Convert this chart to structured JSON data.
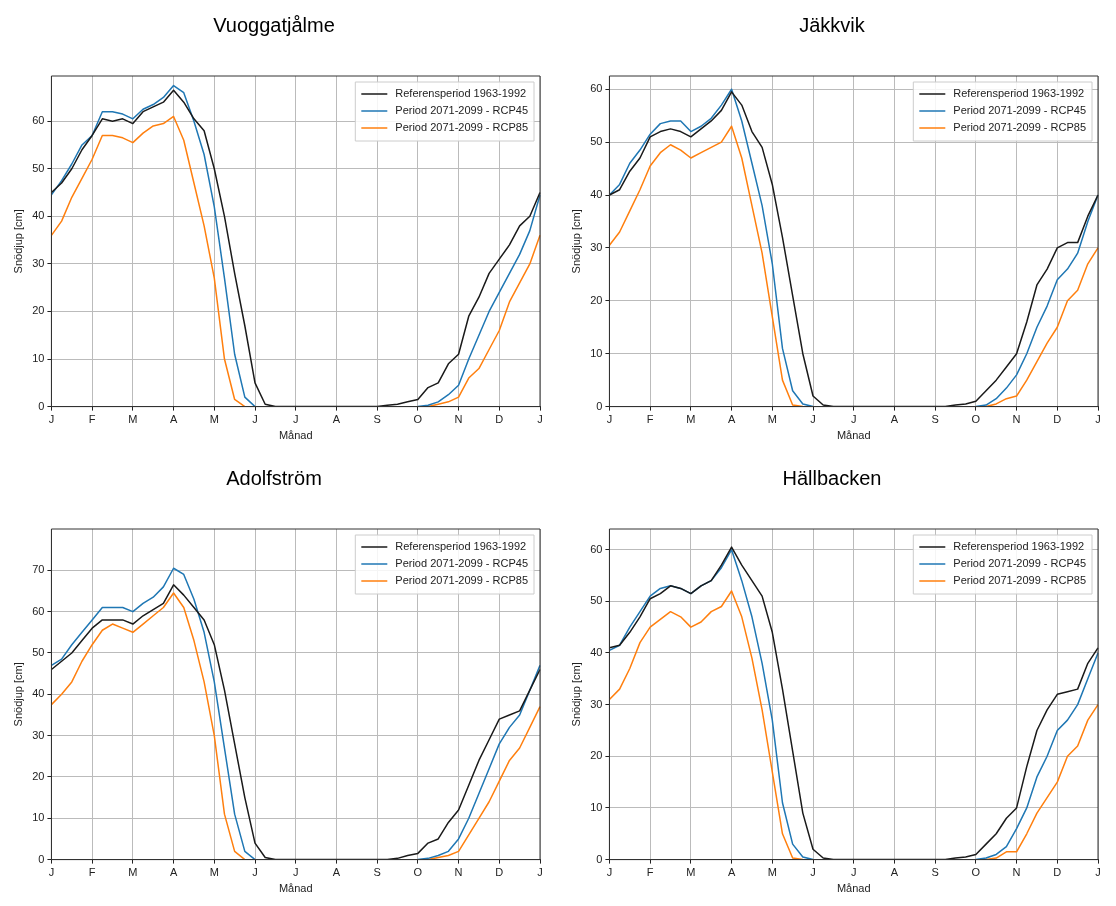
{
  "chart_data": [
    {
      "type": "line",
      "title": "Vuoggatjålme",
      "xlabel": "Månad",
      "ylabel": "Snödjup [cm]",
      "ylim": [
        0,
        69.5
      ],
      "yticks": [
        0,
        10,
        20,
        30,
        40,
        50,
        60
      ],
      "grid": true,
      "legend": "top right",
      "categories": [
        "J",
        null,
        null,
        null,
        "F",
        null,
        null,
        null,
        "M",
        null,
        null,
        null,
        "A",
        null,
        null,
        null,
        "M",
        null,
        null,
        null,
        "J",
        null,
        null,
        null,
        "J",
        null,
        null,
        null,
        "A",
        null,
        null,
        null,
        "S",
        null,
        null,
        null,
        "O",
        null,
        null,
        null,
        "N",
        null,
        null,
        null,
        "D",
        null,
        null,
        null,
        "J"
      ],
      "series": [
        {
          "name": "Referensperiod 1963-1992",
          "color": "#1a1a1a",
          "values": [
            45,
            47,
            50,
            54,
            57,
            60.5,
            60,
            60.5,
            59.5,
            62,
            63,
            64,
            66.5,
            64,
            60.5,
            58,
            50,
            40,
            28,
            17,
            5,
            0.5,
            0,
            0,
            0,
            0,
            0,
            0,
            0,
            0,
            0,
            0,
            0,
            0.3,
            0.5,
            1,
            1.5,
            4,
            5,
            9,
            11,
            19,
            23,
            28,
            31,
            34,
            38,
            40,
            45
          ]
        },
        {
          "name": "Period 2071-2099 - RCP45",
          "color": "#1f77b4",
          "values": [
            44.5,
            47.5,
            51,
            55,
            57,
            62,
            62,
            61.5,
            60.5,
            62.5,
            63.5,
            65,
            67.5,
            66,
            60,
            53,
            42,
            27,
            11,
            2,
            0,
            null,
            null,
            null,
            null,
            null,
            null,
            null,
            null,
            null,
            null,
            null,
            null,
            null,
            null,
            null,
            0,
            0.3,
            1,
            2.5,
            4.5,
            10,
            15,
            20,
            24,
            28,
            32,
            37,
            44.5
          ]
        },
        {
          "name": "Period 2071-2099 - RCP85",
          "color": "#ff7f0e",
          "values": [
            36,
            39,
            44,
            48,
            52,
            57,
            57,
            56.5,
            55.5,
            57.5,
            59,
            59.5,
            61,
            56,
            47,
            38,
            27,
            10,
            1.5,
            0,
            null,
            null,
            null,
            null,
            null,
            null,
            null,
            null,
            null,
            null,
            null,
            null,
            null,
            null,
            null,
            null,
            null,
            0,
            0.5,
            1,
            2,
            6,
            8,
            12,
            16,
            22,
            26,
            30,
            36
          ]
        }
      ]
    },
    {
      "type": "line",
      "title": "Jäkkvik",
      "xlabel": "Månad",
      "ylabel": "Snödjup [cm]",
      "ylim": [
        0,
        62.5
      ],
      "yticks": [
        0,
        10,
        20,
        30,
        40,
        50,
        60
      ],
      "grid": true,
      "legend": "top right",
      "categories": [
        "J",
        null,
        null,
        null,
        "F",
        null,
        null,
        null,
        "M",
        null,
        null,
        null,
        "A",
        null,
        null,
        null,
        "M",
        null,
        null,
        null,
        "J",
        null,
        null,
        null,
        "J",
        null,
        null,
        null,
        "A",
        null,
        null,
        null,
        "S",
        null,
        null,
        null,
        "O",
        null,
        null,
        null,
        "N",
        null,
        null,
        null,
        "D",
        null,
        null,
        null,
        "J"
      ],
      "series": [
        {
          "name": "Referensperiod 1963-1992",
          "color": "#1a1a1a",
          "values": [
            40,
            41,
            44.5,
            47,
            51,
            52,
            52.5,
            52,
            51,
            52.5,
            54,
            56,
            59.5,
            57,
            52,
            49,
            42,
            32,
            21,
            10,
            2,
            0.3,
            0,
            0,
            0,
            0,
            0,
            0,
            0,
            0,
            0,
            0,
            0,
            0,
            0.3,
            0.5,
            1,
            3,
            5,
            7.5,
            10,
            16,
            23,
            26,
            30,
            31,
            31,
            36,
            40
          ]
        },
        {
          "name": "Period 2071-2099 - RCP45",
          "color": "#1f77b4",
          "values": [
            40,
            42,
            46,
            48.5,
            51.5,
            53.5,
            54,
            54,
            52,
            53,
            54.5,
            57,
            60,
            54,
            46,
            38,
            27,
            11,
            3,
            0.5,
            0,
            null,
            null,
            null,
            null,
            null,
            null,
            null,
            null,
            null,
            null,
            null,
            null,
            null,
            null,
            null,
            0,
            0.3,
            1.5,
            3.5,
            6,
            10,
            15,
            19,
            24,
            26,
            29,
            35,
            40
          ]
        },
        {
          "name": "Period 2071-2099 - RCP85",
          "color": "#ff7f0e",
          "values": [
            30.5,
            33,
            37,
            41,
            45.5,
            48,
            49.5,
            48.5,
            47,
            48,
            49,
            50,
            53,
            47,
            38,
            29,
            17,
            5,
            0.3,
            0,
            null,
            null,
            null,
            null,
            null,
            null,
            null,
            null,
            null,
            null,
            null,
            null,
            null,
            null,
            null,
            null,
            null,
            0,
            0.5,
            1.5,
            2,
            5,
            8.5,
            12,
            15,
            20,
            22,
            27,
            30
          ]
        }
      ]
    },
    {
      "type": "line",
      "title": "Adolfström",
      "xlabel": "Månad",
      "ylabel": "Snödjup [cm]",
      "ylim": [
        0,
        80
      ],
      "yticks": [
        0,
        10,
        20,
        30,
        40,
        50,
        60,
        70
      ],
      "grid": true,
      "legend": "top right",
      "categories": [
        "J",
        null,
        null,
        null,
        "F",
        null,
        null,
        null,
        "M",
        null,
        null,
        null,
        "A",
        null,
        null,
        null,
        "M",
        null,
        null,
        null,
        "J",
        null,
        null,
        null,
        "J",
        null,
        null,
        null,
        "A",
        null,
        null,
        null,
        "S",
        null,
        null,
        null,
        "O",
        null,
        null,
        null,
        "N",
        null,
        null,
        null,
        "D",
        null,
        null,
        null,
        "J"
      ],
      "series": [
        {
          "name": "Referensperiod 1963-1992",
          "color": "#1a1a1a",
          "values": [
            46,
            48,
            50,
            53,
            56,
            58,
            58,
            58,
            57,
            59,
            60.5,
            62,
            66.5,
            64,
            61,
            58,
            52,
            41,
            28,
            15,
            4,
            0.5,
            0,
            0,
            0,
            0,
            0,
            0,
            0,
            0,
            0,
            0,
            0,
            0,
            0.3,
            1,
            1.5,
            4,
            5,
            9,
            12,
            18,
            24,
            29,
            34,
            35,
            36,
            41,
            46
          ]
        },
        {
          "name": "Period 2071-2099 - RCP45",
          "color": "#1f77b4",
          "values": [
            47,
            48.5,
            52,
            55,
            58,
            61,
            61,
            61,
            60,
            62,
            63.5,
            66,
            70.5,
            69,
            63,
            55,
            43,
            27,
            11,
            2,
            0,
            null,
            null,
            null,
            null,
            null,
            null,
            null,
            null,
            null,
            null,
            null,
            null,
            null,
            null,
            null,
            0,
            0.3,
            1,
            2,
            5,
            10,
            16,
            22,
            28,
            32,
            35,
            41,
            47
          ]
        },
        {
          "name": "Period 2071-2099 - RCP85",
          "color": "#ff7f0e",
          "values": [
            37.5,
            40,
            43,
            48,
            52,
            55.5,
            57,
            56,
            55,
            57,
            59,
            61,
            64.5,
            61,
            53,
            43,
            30,
            11,
            2,
            0,
            null,
            null,
            null,
            null,
            null,
            null,
            null,
            null,
            null,
            null,
            null,
            null,
            null,
            null,
            null,
            null,
            null,
            0,
            0.5,
            1,
            2,
            6,
            10,
            14,
            19,
            24,
            27,
            32,
            37
          ]
        }
      ]
    },
    {
      "type": "line",
      "title": "Hällbacken",
      "xlabel": "Månad",
      "ylabel": "Snödjup [cm]",
      "ylim": [
        0,
        64
      ],
      "yticks": [
        0,
        10,
        20,
        30,
        40,
        50,
        60
      ],
      "grid": true,
      "legend": "top right",
      "categories": [
        "J",
        null,
        null,
        null,
        "F",
        null,
        null,
        null,
        "M",
        null,
        null,
        null,
        "A",
        null,
        null,
        null,
        "M",
        null,
        null,
        null,
        "J",
        null,
        null,
        null,
        "J",
        null,
        null,
        null,
        "A",
        null,
        null,
        null,
        "S",
        null,
        null,
        null,
        "O",
        null,
        null,
        null,
        "N",
        null,
        null,
        null,
        "D",
        null,
        null,
        null,
        "J"
      ],
      "series": [
        {
          "name": "Referensperiod 1963-1992",
          "color": "#1a1a1a",
          "values": [
            41,
            41.5,
            44,
            47,
            50.5,
            51.5,
            53,
            52.5,
            51.5,
            53,
            54,
            57,
            60.5,
            57,
            54,
            51,
            44,
            33,
            21,
            9,
            2,
            0.3,
            0,
            0,
            0,
            0,
            0,
            0,
            0,
            0,
            0,
            0,
            0,
            0,
            0.3,
            0.5,
            1,
            3,
            5,
            8,
            10,
            18,
            25,
            29,
            32,
            32.5,
            33,
            38,
            41
          ]
        },
        {
          "name": "Period 2071-2099 - RCP45",
          "color": "#1f77b4",
          "values": [
            40.5,
            41.5,
            45,
            48,
            51,
            52.5,
            53,
            52.5,
            51.5,
            53,
            54,
            56.5,
            60,
            54,
            47,
            38,
            27,
            11,
            3,
            0.5,
            0,
            null,
            null,
            null,
            null,
            null,
            null,
            null,
            null,
            null,
            null,
            null,
            null,
            null,
            null,
            null,
            0,
            0.3,
            1,
            2.5,
            6,
            10,
            16,
            20,
            25,
            27,
            30,
            35,
            40
          ]
        },
        {
          "name": "Period 2071-2099 - RCP85",
          "color": "#ff7f0e",
          "values": [
            31,
            33,
            37,
            42,
            45,
            46.5,
            48,
            47,
            45,
            46,
            48,
            49,
            52,
            47,
            39,
            29,
            17,
            5,
            0.3,
            0,
            null,
            null,
            null,
            null,
            null,
            null,
            null,
            null,
            null,
            null,
            null,
            null,
            null,
            null,
            null,
            null,
            null,
            0,
            0.3,
            1.5,
            1.5,
            5,
            9,
            12,
            15,
            20,
            22,
            27,
            30
          ]
        }
      ]
    }
  ]
}
